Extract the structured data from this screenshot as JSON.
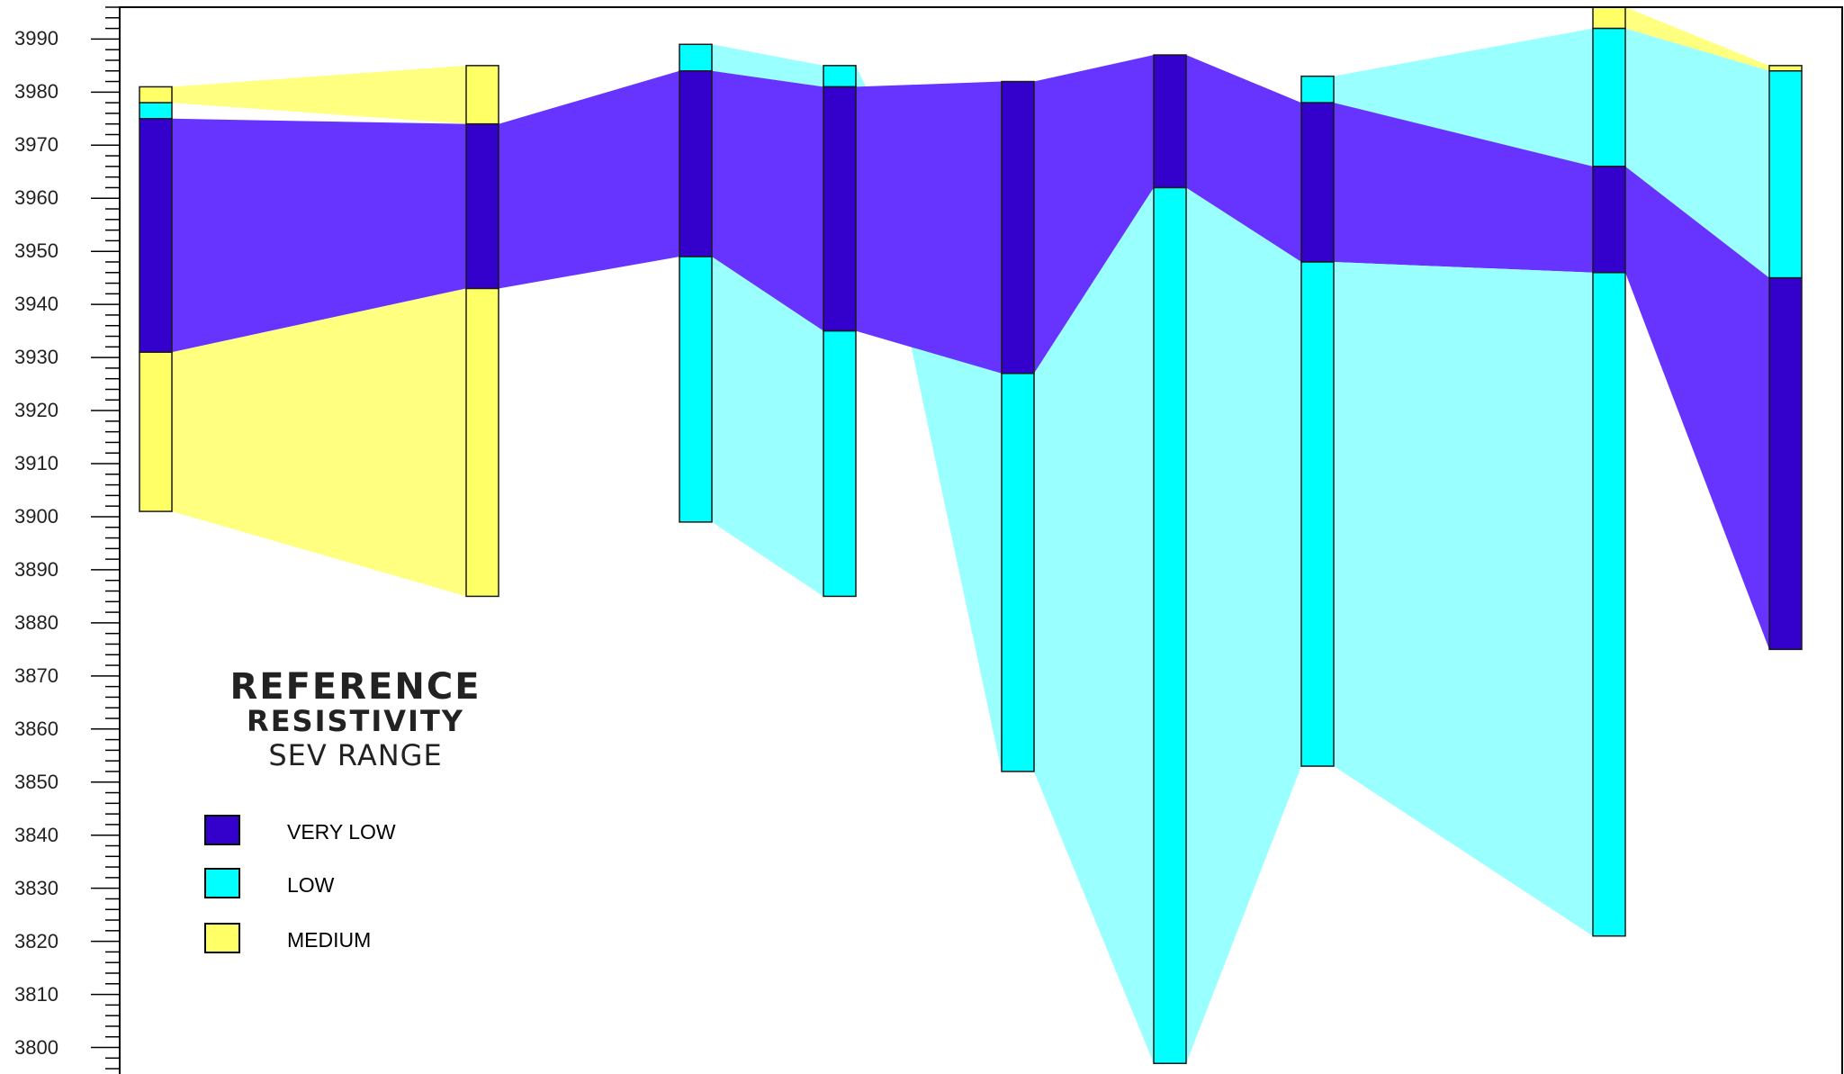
{
  "diagram": {
    "type": "resistivity_cross_section",
    "y_axis": {
      "min": 3795,
      "max": 3996,
      "labeled_ticks": [
        3990,
        3980,
        3970,
        3960,
        3950,
        3940,
        3930,
        3920,
        3910,
        3900,
        3890,
        3880,
        3870,
        3860,
        3850,
        3840,
        3830,
        3820,
        3810,
        3800
      ],
      "minor_tick_step": 2
    },
    "classes": [
      {
        "id": "very_low",
        "label": "VERY LOW",
        "column_color": "#3300CC",
        "fill_color": "#6633FF"
      },
      {
        "id": "low",
        "label": "LOW",
        "column_color": "#00FFFF",
        "fill_color": "#99FFFF"
      },
      {
        "id": "medium",
        "label": "MEDIUM",
        "column_color": "#FFFF66",
        "fill_color": "#FFFF80"
      }
    ],
    "soundings": [
      {
        "layers": [
          {
            "top": 3981,
            "bottom": 3978,
            "class": "medium"
          },
          {
            "top": 3978,
            "bottom": 3975,
            "class": "low"
          },
          {
            "top": 3975,
            "bottom": 3931,
            "class": "very_low"
          },
          {
            "top": 3931,
            "bottom": 3901,
            "class": "medium"
          }
        ]
      },
      {
        "layers": [
          {
            "top": 3985,
            "bottom": 3974,
            "class": "medium"
          },
          {
            "top": 3974,
            "bottom": 3943,
            "class": "very_low"
          },
          {
            "top": 3943,
            "bottom": 3885,
            "class": "medium"
          }
        ]
      },
      {
        "layers": [
          {
            "top": 3989,
            "bottom": 3984,
            "class": "low"
          },
          {
            "top": 3984,
            "bottom": 3949,
            "class": "very_low"
          },
          {
            "top": 3949,
            "bottom": 3899,
            "class": "low"
          }
        ]
      },
      {
        "layers": [
          {
            "top": 3985,
            "bottom": 3981,
            "class": "low"
          },
          {
            "top": 3981,
            "bottom": 3935,
            "class": "very_low"
          },
          {
            "top": 3935,
            "bottom": 3885,
            "class": "low"
          }
        ]
      },
      {
        "layers": [
          {
            "top": 3982,
            "bottom": 3927,
            "class": "very_low"
          },
          {
            "top": 3927,
            "bottom": 3852,
            "class": "low"
          }
        ]
      },
      {
        "layers": [
          {
            "top": 3987,
            "bottom": 3962,
            "class": "very_low"
          },
          {
            "top": 3962,
            "bottom": 3797,
            "class": "low"
          }
        ]
      },
      {
        "layers": [
          {
            "top": 3983,
            "bottom": 3978,
            "class": "low"
          },
          {
            "top": 3978,
            "bottom": 3948,
            "class": "very_low"
          },
          {
            "top": 3948,
            "bottom": 3853,
            "class": "low"
          }
        ]
      },
      {
        "layers": [
          {
            "top": 3996,
            "bottom": 3992,
            "class": "medium"
          },
          {
            "top": 3992,
            "bottom": 3966,
            "class": "low"
          },
          {
            "top": 3966,
            "bottom": 3946,
            "class": "very_low"
          },
          {
            "top": 3946,
            "bottom": 3821,
            "class": "low"
          }
        ]
      },
      {
        "layers": [
          {
            "top": 3985,
            "bottom": 3984,
            "class": "medium"
          },
          {
            "top": 3984,
            "bottom": 3945,
            "class": "low"
          },
          {
            "top": 3945,
            "bottom": 3875,
            "class": "very_low"
          }
        ]
      }
    ]
  },
  "legend": {
    "title_lines": [
      "REFERENCE",
      "RESISTIVITY",
      "SEV RANGE"
    ],
    "items": [
      {
        "label": "VERY LOW",
        "color": "#3300CC"
      },
      {
        "label": "LOW",
        "color": "#00FFFF"
      },
      {
        "label": "MEDIUM",
        "color": "#FFFF66"
      }
    ]
  }
}
